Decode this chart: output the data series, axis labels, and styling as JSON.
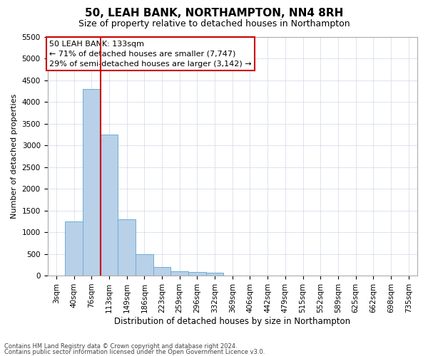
{
  "title1": "50, LEAH BANK, NORTHAMPTON, NN4 8RH",
  "title2": "Size of property relative to detached houses in Northampton",
  "xlabel": "Distribution of detached houses by size in Northampton",
  "ylabel": "Number of detached properties",
  "categories": [
    "3sqm",
    "40sqm",
    "76sqm",
    "113sqm",
    "149sqm",
    "186sqm",
    "223sqm",
    "259sqm",
    "296sqm",
    "332sqm",
    "369sqm",
    "406sqm",
    "442sqm",
    "479sqm",
    "515sqm",
    "552sqm",
    "589sqm",
    "625sqm",
    "662sqm",
    "698sqm",
    "735sqm"
  ],
  "values": [
    0,
    1250,
    4300,
    3250,
    1300,
    490,
    200,
    100,
    80,
    60,
    0,
    0,
    0,
    0,
    0,
    0,
    0,
    0,
    0,
    0,
    0
  ],
  "bar_color": "#b8d0e8",
  "bar_edge_color": "#6baed6",
  "vline_color": "#cc0000",
  "vline_x_idx": 3,
  "ylim_max": 5500,
  "yticks": [
    0,
    500,
    1000,
    1500,
    2000,
    2500,
    3000,
    3500,
    4000,
    4500,
    5000,
    5500
  ],
  "annotation_line1": "50 LEAH BANK: 133sqm",
  "annotation_line2": "← 71% of detached houses are smaller (7,747)",
  "annotation_line3": "29% of semi-detached houses are larger (3,142) →",
  "annotation_box_facecolor": "#ffffff",
  "annotation_box_edgecolor": "#cc0000",
  "footer1": "Contains HM Land Registry data © Crown copyright and database right 2024.",
  "footer2": "Contains public sector information licensed under the Open Government Licence v3.0.",
  "bg_color": "#ffffff",
  "grid_color": "#d0d8e8",
  "title1_fontsize": 11,
  "title2_fontsize": 9,
  "ylabel_fontsize": 8,
  "xlabel_fontsize": 8.5,
  "tick_fontsize": 7.5,
  "annot_fontsize": 8,
  "footer_fontsize": 6
}
